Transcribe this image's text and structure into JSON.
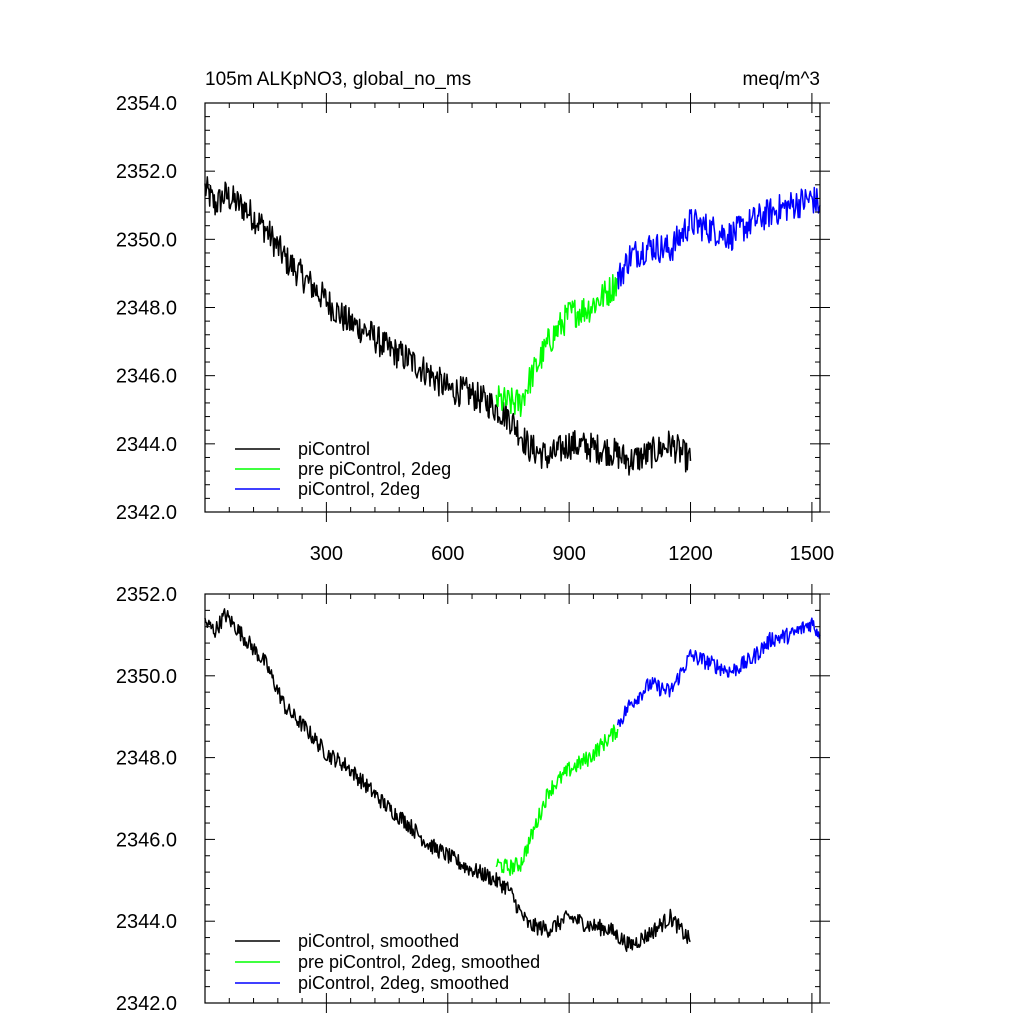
{
  "chart_data": [
    {
      "type": "line",
      "title_left": "105m ALKpNO3, global_no_ms",
      "title_right": "meq/m^3",
      "xlim": [
        0,
        1520
      ],
      "ylim": [
        2342.0,
        2354.0
      ],
      "x_ticks": [
        300,
        600,
        900,
        1200,
        1500
      ],
      "x_tick_labels": [
        "300",
        "600",
        "900",
        "1200",
        "1500"
      ],
      "y_ticks": [
        2342.0,
        2344.0,
        2346.0,
        2348.0,
        2350.0,
        2352.0,
        2354.0
      ],
      "y_tick_labels": [
        "2342.0",
        "2344.0",
        "2346.0",
        "2348.0",
        "2350.0",
        "2352.0",
        "2354.0"
      ],
      "legend_position": "bottom-left",
      "noise_amplitude": 0.45,
      "series": [
        {
          "name": "piControl",
          "color": "#000000",
          "x": [
            0,
            25,
            50,
            100,
            150,
            200,
            250,
            300,
            350,
            400,
            450,
            500,
            550,
            600,
            650,
            700,
            750,
            780,
            800,
            850,
            900,
            950,
            1000,
            1050,
            1100,
            1150,
            1200
          ],
          "y": [
            2351.5,
            2351.0,
            2351.3,
            2350.9,
            2350.3,
            2349.4,
            2348.8,
            2348.2,
            2347.6,
            2347.3,
            2346.8,
            2346.5,
            2346.1,
            2345.6,
            2345.5,
            2345.2,
            2344.8,
            2344.3,
            2343.9,
            2343.6,
            2344.0,
            2343.9,
            2343.8,
            2343.5,
            2343.7,
            2344.0,
            2343.5
          ]
        },
        {
          "name": "pre piControl, 2deg",
          "color": "#00ff00",
          "x": [
            720,
            750,
            780,
            800,
            850,
            900,
            950,
            1000,
            1020
          ],
          "y": [
            2345.3,
            2345.2,
            2345.2,
            2345.8,
            2347.0,
            2347.8,
            2348.0,
            2348.5,
            2348.8
          ]
        },
        {
          "name": "piControl, 2deg",
          "color": "#0000ff",
          "x": [
            1020,
            1050,
            1100,
            1150,
            1200,
            1250,
            1300,
            1350,
            1400,
            1450,
            1500,
            1520
          ],
          "y": [
            2348.8,
            2349.5,
            2349.8,
            2349.7,
            2350.5,
            2350.3,
            2350.1,
            2350.5,
            2350.8,
            2351.0,
            2351.2,
            2351.0
          ]
        }
      ]
    },
    {
      "type": "line",
      "xlim": [
        0,
        1520
      ],
      "ylim": [
        2342.0,
        2352.0
      ],
      "x_ticks": [
        300,
        600,
        900,
        1200,
        1500
      ],
      "y_ticks": [
        2342.0,
        2344.0,
        2346.0,
        2348.0,
        2350.0,
        2352.0
      ],
      "y_tick_labels": [
        "2342.0",
        "2344.0",
        "2346.0",
        "2348.0",
        "2350.0",
        "2352.0"
      ],
      "legend_position": "bottom-left",
      "noise_amplitude": 0.2,
      "series": [
        {
          "name": "piControl, smoothed",
          "color": "#000000",
          "x": [
            0,
            25,
            50,
            100,
            150,
            200,
            250,
            300,
            350,
            400,
            450,
            500,
            550,
            600,
            650,
            700,
            750,
            780,
            800,
            850,
            900,
            950,
            1000,
            1050,
            1100,
            1150,
            1200
          ],
          "y": [
            2351.3,
            2351.1,
            2351.5,
            2350.9,
            2350.3,
            2349.2,
            2348.7,
            2348.1,
            2347.8,
            2347.3,
            2346.8,
            2346.4,
            2345.9,
            2345.6,
            2345.3,
            2345.1,
            2344.8,
            2344.2,
            2343.9,
            2343.8,
            2344.1,
            2343.9,
            2343.8,
            2343.4,
            2343.7,
            2344.1,
            2343.5
          ]
        },
        {
          "name": "pre piControl, 2deg, smoothed",
          "color": "#00ff00",
          "x": [
            720,
            750,
            780,
            800,
            850,
            900,
            950,
            1000,
            1020
          ],
          "y": [
            2345.4,
            2345.3,
            2345.4,
            2345.9,
            2347.2,
            2347.7,
            2348.0,
            2348.5,
            2348.7
          ]
        },
        {
          "name": "piControl, 2deg, smoothed",
          "color": "#0000ff",
          "x": [
            1020,
            1050,
            1100,
            1150,
            1200,
            1250,
            1300,
            1350,
            1400,
            1450,
            1500,
            1520
          ],
          "y": [
            2348.8,
            2349.3,
            2349.8,
            2349.6,
            2350.5,
            2350.3,
            2350.1,
            2350.4,
            2350.9,
            2351.0,
            2351.3,
            2351.0
          ]
        }
      ]
    }
  ]
}
